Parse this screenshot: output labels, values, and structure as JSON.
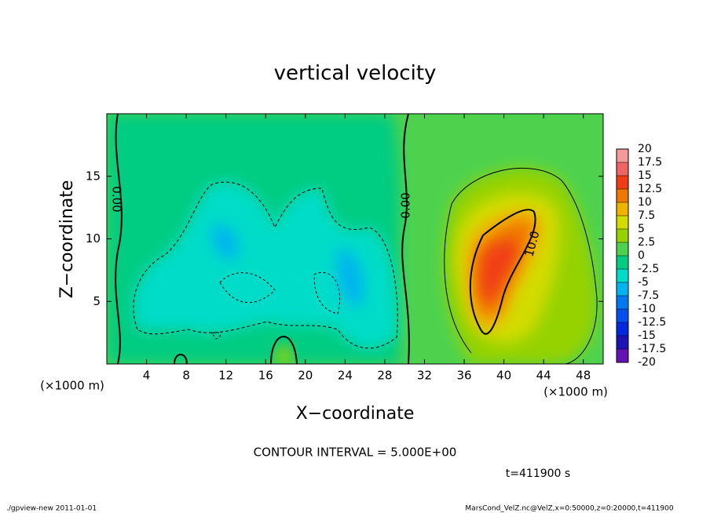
{
  "chart_data": {
    "type": "contour",
    "title": "vertical velocity",
    "xlabel": "X−coordinate",
    "ylabel": "Z−coordinate",
    "x_unit": "(×1000 m)",
    "xlim": [
      0,
      50
    ],
    "xticks": [
      4,
      8,
      12,
      16,
      20,
      24,
      28,
      32,
      36,
      40,
      44,
      48
    ],
    "ylim": [
      0,
      20
    ],
    "yticks": [
      5,
      10,
      15
    ],
    "colorbar": {
      "levels": [
        20,
        17.5,
        15,
        12.5,
        10,
        7.5,
        5,
        2.5,
        0,
        -2.5,
        -5,
        -7.5,
        -10,
        -12.5,
        -15,
        -17.5,
        -20
      ],
      "colors": [
        "#f59a9a",
        "#f06464",
        "#f03c14",
        "#f07800",
        "#f0b400",
        "#d2dc00",
        "#96d200",
        "#4ed24e",
        "#00cc82",
        "#00dcc8",
        "#00b4f0",
        "#0078f0",
        "#0050f0",
        "#0028dc",
        "#1e14b4",
        "#6414b4"
      ]
    },
    "contour_labels": [
      "0.00",
      "0.00",
      "10.0"
    ],
    "contour_interval": "CONTOUR INTERVAL = 5.000E+00",
    "time": "t=411900 s",
    "footer_left": "./gpview-new  2011-01-01",
    "footer_right": "MarsCond_VelZ.nc@VelZ,x=0:50000,z=0:20000,t=411900"
  }
}
